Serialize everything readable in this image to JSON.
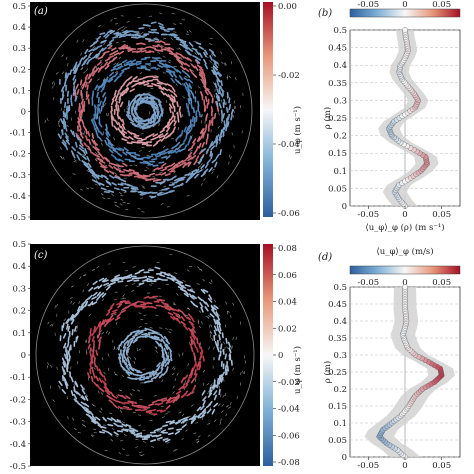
{
  "figure": {
    "panel_labels": [
      "(a)",
      "(b)",
      "(c)",
      "(d)"
    ],
    "colorbar_label_a": "u_φ (m s⁻¹)",
    "colorbar_label_c": "u_φ (m s⁻¹)",
    "profile_b_xlabel": "⟨u_φ⟩_φ (ρ) (m s⁻¹)",
    "profile_ylabel": "ρ (m)",
    "profile_d_colorbar_label": "⟨u_φ⟩_φ (m/s)"
  },
  "colors": {
    "negative": "#2c6aa8",
    "zero": "#f5f5f5",
    "positive": "#b2182b",
    "field_background": "#000000"
  },
  "chart_data": [
    {
      "id": "a",
      "type": "heatmap",
      "title": "",
      "xlabel": "",
      "ylabel": "",
      "yticks": [
        "0.5",
        "0.4",
        "0.3",
        "0.2",
        "0.1",
        "0",
        "-0.1",
        "-0.2",
        "-0.3",
        "-0.4",
        "-0.5"
      ],
      "ylim": [
        -0.5,
        0.5
      ],
      "colorbar": {
        "range": [
          -0.07,
          0.0
        ],
        "ticks": [
          "0.00",
          "-0.02",
          "-0.04",
          "-0.06"
        ],
        "label": "u_φ (m s⁻¹)"
      },
      "rings": [
        {
          "radius_m": 0.06,
          "value": -0.03
        },
        {
          "radius_m": 0.14,
          "value": 0.02
        },
        {
          "radius_m": 0.225,
          "value": -0.04
        },
        {
          "radius_m": 0.3,
          "value": 0.03
        },
        {
          "radius_m": 0.37,
          "value": -0.03
        }
      ]
    },
    {
      "id": "b",
      "type": "line",
      "xlabel": "⟨u_φ⟩_φ (ρ) (m s⁻¹)",
      "ylabel": "ρ (m)",
      "xlim": [
        -0.075,
        0.075
      ],
      "ylim": [
        0,
        0.5
      ],
      "yticks": [
        "0",
        "0.05",
        "0.1",
        "0.15",
        "0.2",
        "0.25",
        "0.3",
        "0.35",
        "0.4",
        "0.45",
        "0.5"
      ],
      "colorbar_ticks": [
        "-0.05",
        "0",
        "0.05"
      ],
      "rho": [
        0.0,
        0.02,
        0.04,
        0.06,
        0.08,
        0.1,
        0.12,
        0.14,
        0.16,
        0.18,
        0.2,
        0.22,
        0.24,
        0.26,
        0.28,
        0.3,
        0.32,
        0.34,
        0.36,
        0.38,
        0.4,
        0.42,
        0.44,
        0.46,
        0.48,
        0.5
      ],
      "u_mean": [
        0.0,
        -0.008,
        -0.014,
        -0.008,
        0.008,
        0.022,
        0.03,
        0.028,
        0.012,
        -0.006,
        -0.018,
        -0.022,
        -0.015,
        0.0,
        0.014,
        0.018,
        0.012,
        0.004,
        -0.004,
        -0.008,
        -0.006,
        0.0,
        0.004,
        0.003,
        0.001,
        0.0
      ],
      "band_halfwidth": 0.012
    },
    {
      "id": "c",
      "type": "heatmap",
      "title": "",
      "xlabel": "",
      "ylabel": "",
      "yticks": [
        "0.5",
        "0.4",
        "0.3",
        "0.2",
        "0.1",
        "0",
        "-0.1",
        "-0.2",
        "-0.3",
        "-0.4",
        "-0.5"
      ],
      "ylim": [
        -0.5,
        0.5
      ],
      "colorbar": {
        "range": [
          -0.08,
          0.08
        ],
        "ticks": [
          "0.08",
          "0.06",
          "0.04",
          "0.02",
          "0",
          "-0.02",
          "-0.04",
          "-0.06",
          "-0.08"
        ],
        "label": "u_φ (m s⁻¹)"
      },
      "rings": [
        {
          "radius_m": 0.1,
          "value": -0.04
        },
        {
          "radius_m": 0.24,
          "value": 0.06
        },
        {
          "radius_m": 0.36,
          "value": -0.03
        }
      ]
    },
    {
      "id": "d",
      "type": "line",
      "xlabel": "",
      "ylabel": "ρ (m)",
      "xlim": [
        -0.075,
        0.075
      ],
      "ylim": [
        0,
        0.5
      ],
      "yticks": [
        "0",
        "0.05",
        "0.1",
        "0.15",
        "0.2",
        "0.25",
        "0.3",
        "0.35",
        "0.4",
        "0.45",
        "0.5"
      ],
      "xticks": [
        "-0.05",
        "0",
        "0.05"
      ],
      "colorbar_label": "⟨u_φ⟩_φ (m/s)",
      "colorbar_ticks": [
        "-0.05",
        "0",
        "0.05"
      ],
      "rho": [
        0.0,
        0.02,
        0.04,
        0.06,
        0.08,
        0.1,
        0.12,
        0.14,
        0.16,
        0.18,
        0.2,
        0.22,
        0.24,
        0.26,
        0.28,
        0.3,
        0.32,
        0.34,
        0.36,
        0.38,
        0.4,
        0.42,
        0.44,
        0.46,
        0.48,
        0.5
      ],
      "u_mean": [
        0.0,
        -0.01,
        -0.025,
        -0.035,
        -0.03,
        -0.018,
        -0.006,
        0.002,
        0.008,
        0.014,
        0.024,
        0.04,
        0.05,
        0.048,
        0.032,
        0.014,
        0.004,
        0.0,
        -0.003,
        0.0,
        0.002,
        0.001,
        0.0,
        0.0,
        0.0,
        0.0
      ],
      "band_halfwidth": 0.015
    }
  ]
}
